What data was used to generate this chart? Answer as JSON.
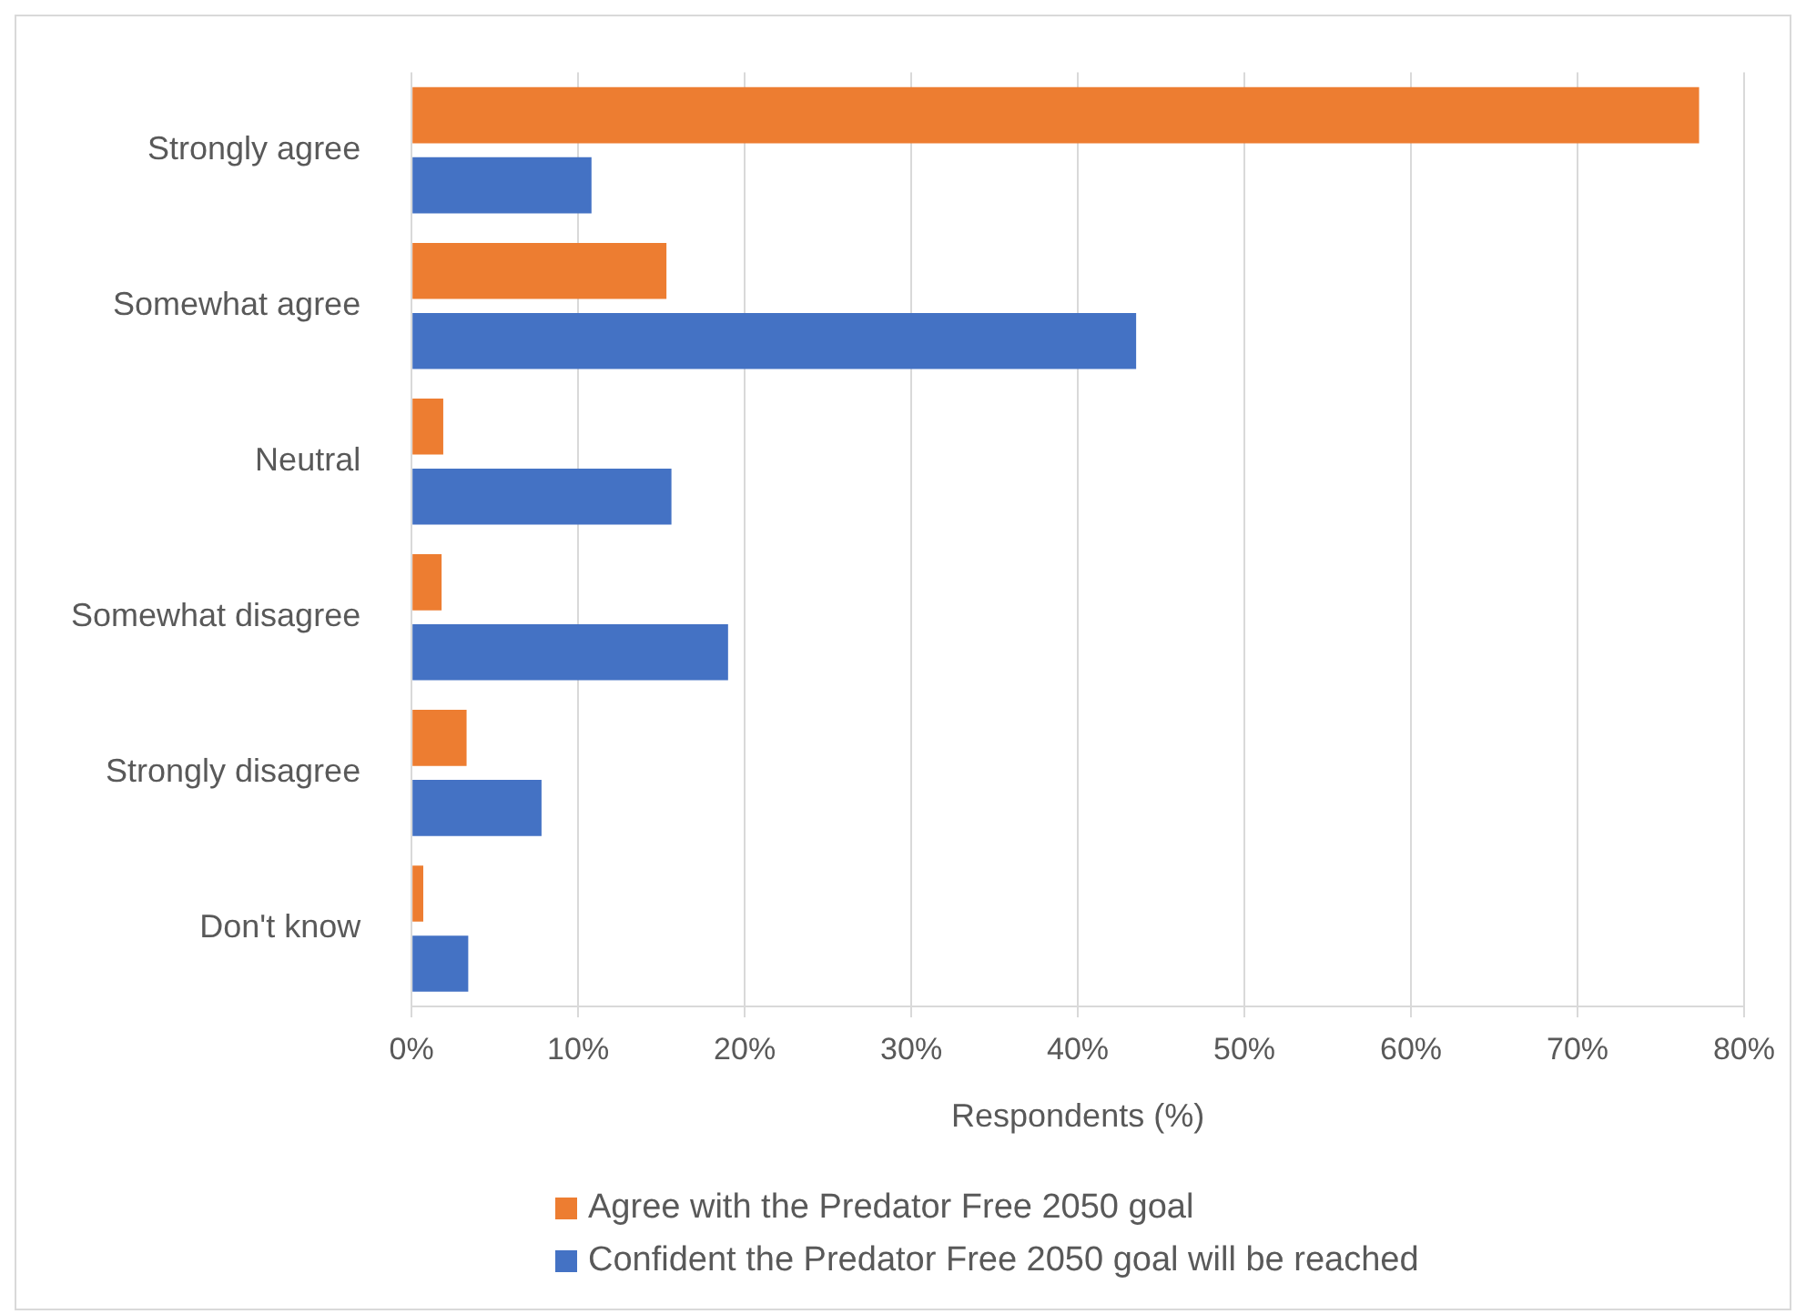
{
  "chart_data": {
    "type": "bar",
    "orientation": "horizontal",
    "xlabel": "Respondents (%)",
    "categories": [
      "Strongly agree",
      "Somewhat agree",
      "Neutral",
      "Somewhat disagree",
      "Strongly disagree",
      "Don't know"
    ],
    "series": [
      {
        "name": "Agree with the Predator Free 2050 goal",
        "color": "#ed7d31",
        "values": [
          77.3,
          15.3,
          1.9,
          1.8,
          3.3,
          0.7
        ]
      },
      {
        "name": "Confident the Predator Free 2050 goal will be reached",
        "color": "#4472c4",
        "values": [
          10.8,
          43.5,
          15.6,
          19.0,
          7.8,
          3.4
        ]
      }
    ],
    "xlim": [
      0,
      80
    ],
    "xticks": [
      {
        "value": 0,
        "label": "0%"
      },
      {
        "value": 10,
        "label": "10%"
      },
      {
        "value": 20,
        "label": "20%"
      },
      {
        "value": 30,
        "label": "30%"
      },
      {
        "value": 40,
        "label": "40%"
      },
      {
        "value": 50,
        "label": "50%"
      },
      {
        "value": 60,
        "label": "60%"
      },
      {
        "value": 70,
        "label": "70%"
      },
      {
        "value": 80,
        "label": "80%"
      }
    ],
    "grid": "x",
    "legend": "bottom"
  }
}
